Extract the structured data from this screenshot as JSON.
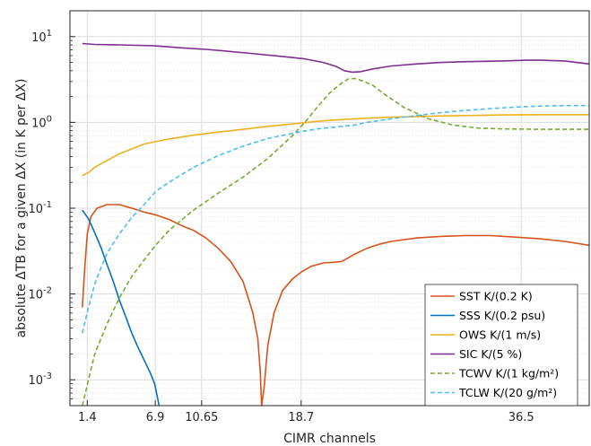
{
  "chart_data": {
    "type": "line",
    "title": "",
    "xlabel": "CIMR channels",
    "ylabel": "absolute ΔTB for a given ΔX (in K per ΔX)",
    "xlim": [
      0,
      42
    ],
    "ylim": [
      0.0005,
      20
    ],
    "yscale": "log",
    "grid": true,
    "legend_position": "bottom-right",
    "x_ticks": [
      {
        "value": 1.4,
        "label": "1.4"
      },
      {
        "value": 6.9,
        "label": "6.9"
      },
      {
        "value": 10.65,
        "label": "10.65"
      },
      {
        "value": 18.7,
        "label": "18.7"
      },
      {
        "value": 36.5,
        "label": "36.5"
      }
    ],
    "y_ticks": [
      {
        "value": 0.001,
        "base": "10",
        "exp": "-3"
      },
      {
        "value": 0.01,
        "base": "10",
        "exp": "-2"
      },
      {
        "value": 0.1,
        "base": "10",
        "exp": "-1"
      },
      {
        "value": 1,
        "base": "10",
        "exp": "0"
      },
      {
        "value": 10,
        "base": "10",
        "exp": "1"
      }
    ],
    "series": [
      {
        "name": "SST K/(0.2 K)",
        "color": "#d95319",
        "dash": "solid",
        "points": [
          [
            1.0,
            0.007
          ],
          [
            1.2,
            0.02
          ],
          [
            1.4,
            0.05
          ],
          [
            1.7,
            0.08
          ],
          [
            2.2,
            0.1
          ],
          [
            3,
            0.11
          ],
          [
            4,
            0.11
          ],
          [
            5,
            0.1
          ],
          [
            6,
            0.09
          ],
          [
            7,
            0.083
          ],
          [
            8,
            0.074
          ],
          [
            9,
            0.063
          ],
          [
            10,
            0.055
          ],
          [
            11,
            0.045
          ],
          [
            12,
            0.034
          ],
          [
            13,
            0.024
          ],
          [
            14,
            0.014
          ],
          [
            14.8,
            0.006
          ],
          [
            15.2,
            0.003
          ],
          [
            15.4,
            0.0012
          ],
          [
            15.5,
            0.0005
          ],
          [
            15.7,
            0.0008
          ],
          [
            16,
            0.0025
          ],
          [
            16.5,
            0.006
          ],
          [
            17.2,
            0.011
          ],
          [
            18,
            0.015
          ],
          [
            18.7,
            0.018
          ],
          [
            19.5,
            0.021
          ],
          [
            20.5,
            0.023
          ],
          [
            21.5,
            0.0235
          ],
          [
            22,
            0.024
          ],
          [
            23,
            0.029
          ],
          [
            24,
            0.034
          ],
          [
            25,
            0.038
          ],
          [
            26,
            0.041
          ],
          [
            28,
            0.045
          ],
          [
            30,
            0.047
          ],
          [
            32,
            0.048
          ],
          [
            34,
            0.048
          ],
          [
            36,
            0.046
          ],
          [
            38,
            0.044
          ],
          [
            40,
            0.041
          ],
          [
            42,
            0.037
          ]
        ]
      },
      {
        "name": "SSS K/(0.2 psu)",
        "color": "#0072bd",
        "dash": "solid",
        "points": [
          [
            1.0,
            0.095
          ],
          [
            1.5,
            0.075
          ],
          [
            2,
            0.052
          ],
          [
            2.5,
            0.035
          ],
          [
            3,
            0.022
          ],
          [
            3.5,
            0.014
          ],
          [
            4,
            0.0085
          ],
          [
            4.5,
            0.0055
          ],
          [
            5,
            0.0035
          ],
          [
            5.5,
            0.0024
          ],
          [
            6,
            0.0017
          ],
          [
            6.5,
            0.0012
          ],
          [
            6.85,
            0.0009
          ],
          [
            7.1,
            0.0006
          ],
          [
            7.2,
            0.0005
          ]
        ]
      },
      {
        "name": "OWS K/(1 m/s)",
        "color": "#edb120",
        "dash": "solid",
        "points": [
          [
            1.0,
            0.24
          ],
          [
            1.5,
            0.26
          ],
          [
            2,
            0.3
          ],
          [
            3,
            0.36
          ],
          [
            4,
            0.43
          ],
          [
            5,
            0.49
          ],
          [
            6,
            0.56
          ],
          [
            7,
            0.6
          ],
          [
            8,
            0.64
          ],
          [
            10,
            0.71
          ],
          [
            12,
            0.77
          ],
          [
            14,
            0.83
          ],
          [
            16,
            0.9
          ],
          [
            18.7,
            0.98
          ],
          [
            20,
            1.03
          ],
          [
            22,
            1.08
          ],
          [
            24,
            1.12
          ],
          [
            26,
            1.15
          ],
          [
            28,
            1.17
          ],
          [
            30,
            1.19
          ],
          [
            32,
            1.2
          ],
          [
            35,
            1.22
          ],
          [
            38,
            1.23
          ],
          [
            42,
            1.23
          ]
        ]
      },
      {
        "name": "SIC K/(5 %)",
        "color": "#7e2f8e",
        "dash": "solid",
        "points": [
          [
            1.0,
            8.3
          ],
          [
            2,
            8.1
          ],
          [
            4,
            8.0
          ],
          [
            6.9,
            7.8
          ],
          [
            9,
            7.4
          ],
          [
            11,
            7.1
          ],
          [
            13,
            6.7
          ],
          [
            15,
            6.3
          ],
          [
            17,
            5.9
          ],
          [
            19,
            5.5
          ],
          [
            20.5,
            5.0
          ],
          [
            21.5,
            4.5
          ],
          [
            22.2,
            4.0
          ],
          [
            22.8,
            3.85
          ],
          [
            23.5,
            3.9
          ],
          [
            24.5,
            4.2
          ],
          [
            26,
            4.55
          ],
          [
            28,
            4.8
          ],
          [
            30,
            5.0
          ],
          [
            32,
            5.1
          ],
          [
            35,
            5.2
          ],
          [
            37,
            5.3
          ],
          [
            38,
            5.3
          ],
          [
            40,
            5.2
          ],
          [
            42,
            4.8
          ]
        ]
      },
      {
        "name": "TCWV K/(1 kg/m²)",
        "color": "#77ac30",
        "dash": "dashed",
        "points": [
          [
            1.0,
            0.0005
          ],
          [
            1.5,
            0.001
          ],
          [
            2,
            0.002
          ],
          [
            3,
            0.0045
          ],
          [
            4,
            0.009
          ],
          [
            5,
            0.016
          ],
          [
            6,
            0.025
          ],
          [
            7,
            0.038
          ],
          [
            8,
            0.055
          ],
          [
            10,
            0.095
          ],
          [
            12,
            0.15
          ],
          [
            14,
            0.23
          ],
          [
            16,
            0.38
          ],
          [
            18,
            0.7
          ],
          [
            19,
            1.0
          ],
          [
            20,
            1.5
          ],
          [
            21,
            2.2
          ],
          [
            22,
            2.9
          ],
          [
            22.5,
            3.2
          ],
          [
            23,
            3.25
          ],
          [
            23.5,
            3.1
          ],
          [
            24.5,
            2.7
          ],
          [
            25.5,
            2.1
          ],
          [
            27,
            1.5
          ],
          [
            29,
            1.1
          ],
          [
            31,
            0.93
          ],
          [
            33,
            0.86
          ],
          [
            35,
            0.84
          ],
          [
            38,
            0.83
          ],
          [
            42,
            0.83
          ]
        ]
      },
      {
        "name": "TCLW K/(20 g/m²)",
        "color": "#4dbeee",
        "dash": "dashed",
        "points": [
          [
            1.0,
            0.0035
          ],
          [
            1.5,
            0.007
          ],
          [
            2,
            0.013
          ],
          [
            2.5,
            0.02
          ],
          [
            3,
            0.03
          ],
          [
            4,
            0.05
          ],
          [
            5,
            0.078
          ],
          [
            6,
            0.11
          ],
          [
            7,
            0.16
          ],
          [
            8,
            0.2
          ],
          [
            10,
            0.3
          ],
          [
            12,
            0.41
          ],
          [
            14,
            0.53
          ],
          [
            16,
            0.65
          ],
          [
            18.7,
            0.78
          ],
          [
            20,
            0.84
          ],
          [
            22,
            0.9
          ],
          [
            23,
            0.93
          ],
          [
            24,
            1.0
          ],
          [
            26,
            1.1
          ],
          [
            28,
            1.2
          ],
          [
            30,
            1.3
          ],
          [
            32,
            1.38
          ],
          [
            34,
            1.45
          ],
          [
            36.5,
            1.52
          ],
          [
            38,
            1.55
          ],
          [
            40,
            1.57
          ],
          [
            42,
            1.57
          ]
        ]
      }
    ]
  }
}
